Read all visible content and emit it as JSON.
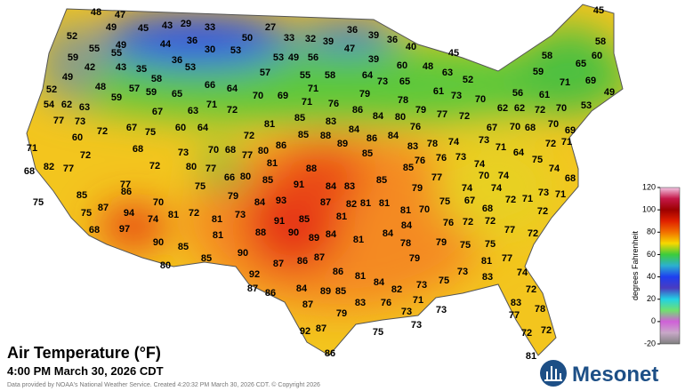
{
  "header": {
    "title": "Air Temperature (°F)",
    "time": "4:00 PM March 30, 2026 CDT"
  },
  "footer": "Data provided by NOAA's National Weather Service. Created 4:20:32 PM March 30, 2026 CDT. © Copyright 2026",
  "logo": "Mesonet",
  "colorbar": {
    "label": "degrees Fahrenheit",
    "lim": [
      -20,
      120
    ],
    "ticks": [
      120,
      100,
      80,
      60,
      40,
      20,
      0,
      -20
    ]
  },
  "stations": [
    48,
    47,
    43,
    29,
    33,
    45,
    49,
    52,
    27,
    36,
    39,
    45,
    50,
    36,
    33,
    32,
    39,
    36,
    55,
    49,
    44,
    30,
    53,
    58,
    47,
    40,
    45,
    59,
    55,
    53,
    49,
    56,
    42,
    43,
    35,
    36,
    53,
    39,
    58,
    65,
    60,
    57,
    55,
    58,
    64,
    60,
    48,
    49,
    58,
    66,
    64,
    73,
    65,
    63,
    52,
    59,
    71,
    69,
    52,
    48,
    57,
    59,
    65,
    71,
    61,
    73,
    56,
    61,
    49,
    54,
    62,
    63,
    59,
    70,
    69,
    71,
    76,
    79,
    78,
    70,
    62,
    62,
    72,
    70,
    53,
    77,
    73,
    67,
    63,
    71,
    72,
    86,
    84,
    80,
    79,
    77,
    72,
    60,
    72,
    67,
    75,
    60,
    64,
    72,
    81,
    85,
    83,
    76,
    67,
    70,
    68,
    70,
    69,
    71,
    85,
    88,
    84,
    86,
    84,
    74,
    73,
    71,
    72,
    71,
    68,
    70,
    68,
    72,
    77,
    80,
    86,
    89,
    83,
    78,
    76,
    76,
    73,
    74,
    64,
    75,
    68,
    82,
    77,
    72,
    73,
    80,
    77,
    66,
    81,
    88,
    85,
    85,
    74,
    70,
    74,
    68,
    77,
    75,
    80,
    85,
    91,
    84,
    83,
    79,
    77,
    85,
    86,
    85,
    74,
    74,
    73,
    71,
    75,
    87,
    93,
    79,
    84,
    87,
    82,
    81,
    81,
    75,
    67,
    68,
    72,
    71,
    72,
    75,
    94,
    70,
    74,
    81,
    72,
    73,
    91,
    85,
    81,
    70,
    81,
    68,
    97,
    81,
    88,
    90,
    89,
    84,
    81,
    84,
    84,
    76,
    72,
    72,
    77,
    72,
    81,
    79,
    75,
    75,
    78,
    90,
    85,
    80,
    85,
    90,
    87,
    86,
    87,
    79,
    81,
    77,
    86,
    81,
    73,
    75,
    83,
    74,
    92,
    84,
    82,
    87,
    86,
    84,
    89,
    85,
    73,
    71,
    73,
    72,
    87,
    83,
    76,
    73,
    83,
    79,
    73,
    77,
    78,
    75,
    92,
    87,
    72,
    72,
    86,
    81
  ]
}
